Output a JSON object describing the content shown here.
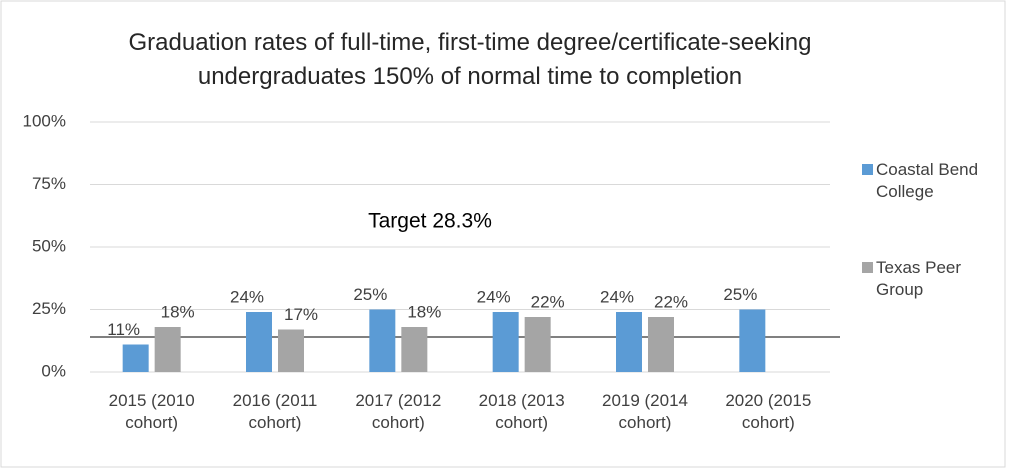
{
  "chart_data": {
    "type": "bar",
    "title": "Graduation rates of full-time, first-time degree/certificate-seeking undergraduates 150% of normal time to completion",
    "annotation": "Target 28.3%",
    "categories": [
      "2015 (2010 cohort)",
      "2016 (2011 cohort)",
      "2017 (2012 cohort)",
      "2018 (2013 cohort)",
      "2019 (2014 cohort)",
      "2020 (2015 cohort)"
    ],
    "series": [
      {
        "name": "Coastal Bend College",
        "color": "#5b9bd5",
        "values": [
          11,
          24,
          25,
          24,
          24,
          25
        ],
        "value_labels": [
          "11%",
          "24%",
          "25%",
          "24%",
          "24%",
          "25%"
        ]
      },
      {
        "name": "Texas Peer Group",
        "color": "#a5a5a5",
        "values": [
          18,
          17,
          18,
          22,
          22,
          null
        ],
        "value_labels": [
          "18%",
          "17%",
          "18%",
          "22%",
          "22%",
          null
        ]
      }
    ],
    "ylim": [
      0,
      100
    ],
    "yticks": [
      {
        "value": 0,
        "label": "0%"
      },
      {
        "value": 25,
        "label": "25%"
      },
      {
        "value": 50,
        "label": "50%"
      },
      {
        "value": 75,
        "label": "75%"
      },
      {
        "value": 100,
        "label": "100%"
      }
    ],
    "grid": true,
    "legend": "right"
  }
}
